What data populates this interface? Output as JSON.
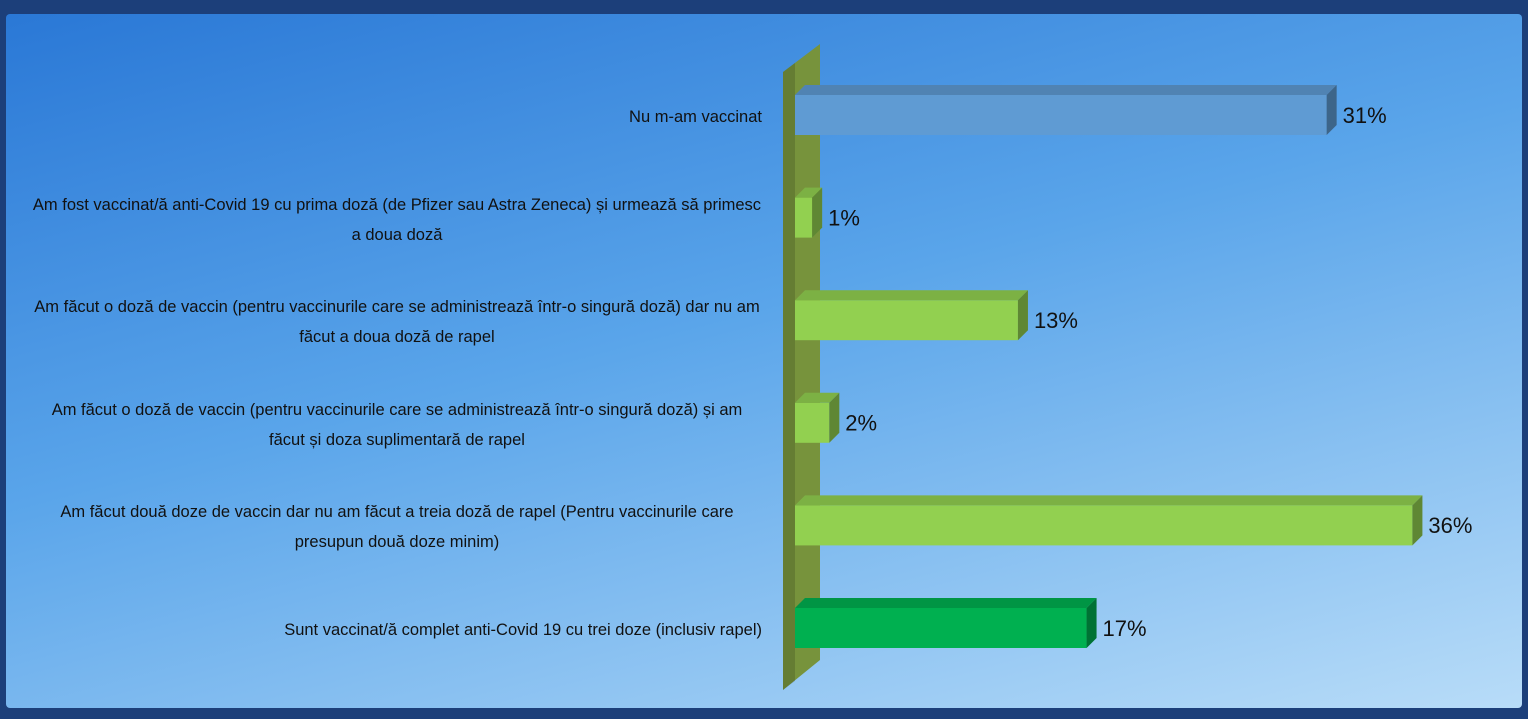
{
  "chart_data": {
    "type": "bar3d_horizontal",
    "categories": [
      "Nu m-am vaccinat",
      "Am fost vaccinat/ă anti-Covid 19 cu prima doză (de Pfizer sau Astra Zeneca) și urmează să primesc a doua doză",
      "Am făcut o doză de vaccin (pentru vaccinurile care se administrează într-o singură doză) dar nu am făcut a doua doză de rapel",
      "Am făcut o doză de vaccin (pentru vaccinurile care se administrează într-o singură doză) și am făcut și doza suplimentară de rapel",
      "Am făcut două doze de vaccin dar nu am făcut a treia doză de rapel (Pentru vaccinurile care presupun două doze minim)",
      "Sunt vaccinat/ă complet anti-Covid 19 cu trei doze (inclusiv rapel)"
    ],
    "values": [
      31,
      1,
      13,
      2,
      36,
      17
    ],
    "value_labels": [
      "31%",
      "1%",
      "13%",
      "2%",
      "36%",
      "17%"
    ],
    "colors": [
      "#5f9bd3",
      "#92d050",
      "#92d050",
      "#92d050",
      "#92d050",
      "#00b050"
    ],
    "axis_color": "#77933c",
    "xlim": [
      0,
      40
    ]
  }
}
